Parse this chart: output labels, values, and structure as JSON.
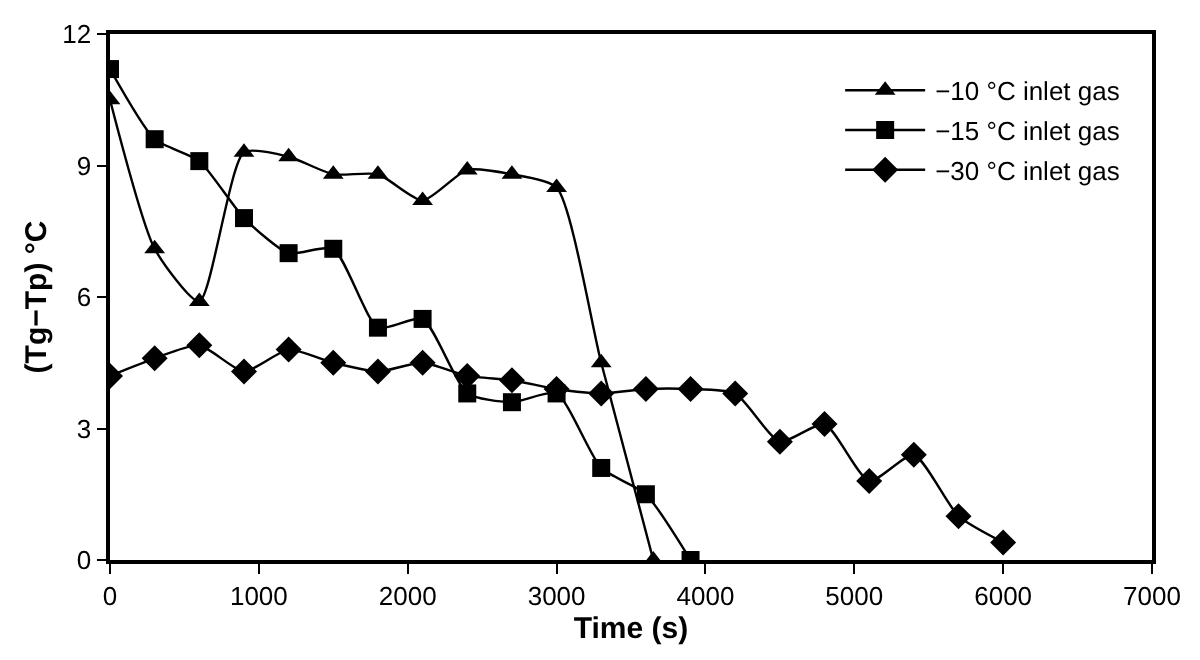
{
  "chart_data": {
    "type": "line",
    "xlabel": "Time (s)",
    "ylabel": "(Tg−Tp) °C",
    "xlim": [
      0,
      7000
    ],
    "xticks": [
      0,
      1000,
      2000,
      3000,
      4000,
      5000,
      6000,
      7000
    ],
    "ylim": [
      0,
      12
    ],
    "yticks": [
      0,
      3,
      6,
      9,
      12
    ],
    "legend": "top right",
    "line_style": "solid",
    "series": [
      {
        "name": "−10 °C inlet gas",
        "color": "#000000",
        "marker": "triangle",
        "x": [
          0,
          300,
          600,
          900,
          1200,
          1500,
          1800,
          2100,
          2400,
          2700,
          3000,
          3300,
          3650
        ],
        "values": [
          10.5,
          7.1,
          5.9,
          9.3,
          9.2,
          8.8,
          8.8,
          8.2,
          8.9,
          8.8,
          8.5,
          4.5,
          0
        ]
      },
      {
        "name": "−15 °C inlet gas",
        "color": "#000000",
        "marker": "square",
        "x": [
          0,
          300,
          600,
          900,
          1200,
          1500,
          1800,
          2100,
          2400,
          2700,
          3000,
          3300,
          3600,
          3900
        ],
        "values": [
          11.2,
          9.6,
          9.1,
          7.8,
          7.0,
          7.1,
          5.3,
          5.5,
          3.8,
          3.6,
          3.8,
          2.1,
          1.5,
          0
        ]
      },
      {
        "name": "−30 °C inlet gas",
        "color": "#000000",
        "marker": "diamond",
        "x": [
          0,
          300,
          600,
          900,
          1200,
          1500,
          1800,
          2100,
          2400,
          2700,
          3000,
          3300,
          3600,
          3900,
          4200,
          4500,
          4800,
          5100,
          5400,
          5700,
          6000
        ],
        "values": [
          4.2,
          4.6,
          4.9,
          4.3,
          4.8,
          4.5,
          4.3,
          4.5,
          4.2,
          4.1,
          3.9,
          3.8,
          3.9,
          3.9,
          3.8,
          2.7,
          3.1,
          1.8,
          2.4,
          1.0,
          0.4
        ]
      }
    ]
  }
}
